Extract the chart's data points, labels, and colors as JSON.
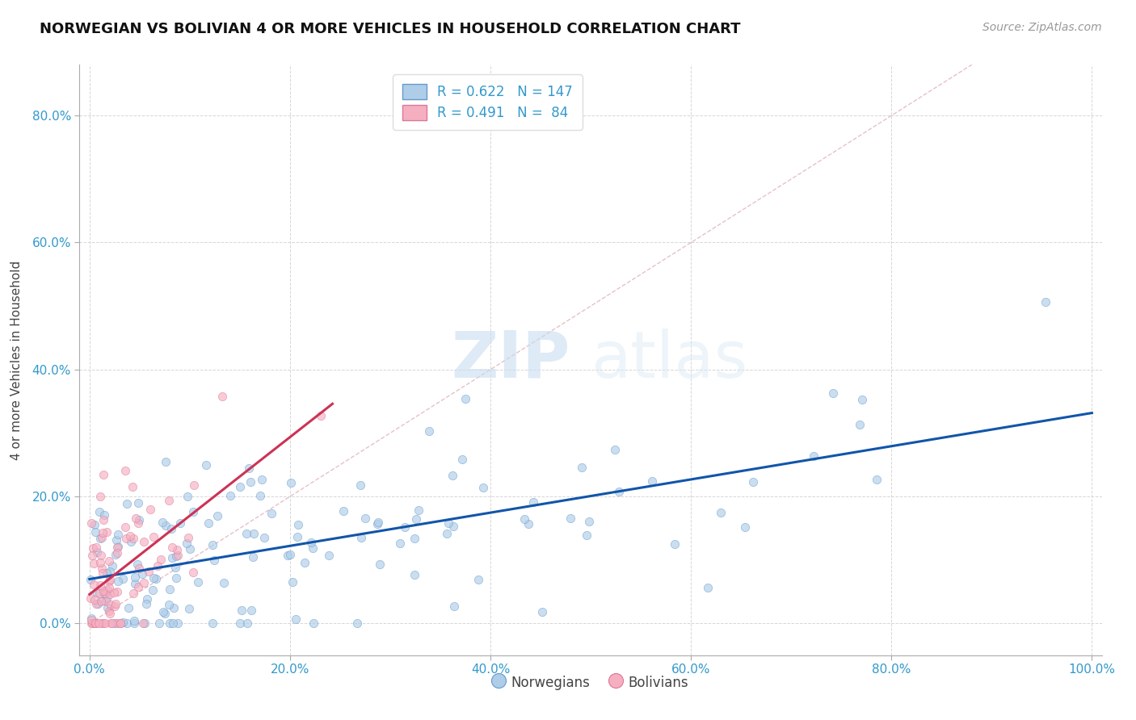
{
  "title": "NORWEGIAN VS BOLIVIAN 4 OR MORE VEHICLES IN HOUSEHOLD CORRELATION CHART",
  "source_text": "Source: ZipAtlas.com",
  "xlabel": "",
  "ylabel": "4 or more Vehicles in Household",
  "xlim": [
    -0.01,
    1.01
  ],
  "ylim": [
    -0.05,
    0.88
  ],
  "xticks": [
    0.0,
    0.2,
    0.4,
    0.6,
    0.8,
    1.0
  ],
  "xtick_labels": [
    "0.0%",
    "20.0%",
    "40.0%",
    "60.0%",
    "80.0%",
    "100.0%"
  ],
  "yticks": [
    0.0,
    0.2,
    0.4,
    0.6,
    0.8
  ],
  "ytick_labels": [
    "0.0%",
    "20.0%",
    "40.0%",
    "60.0%",
    "80.0%"
  ],
  "norwegian_color": "#aecde8",
  "bolivian_color": "#f5afc0",
  "norwegian_edge": "#6699cc",
  "bolivian_edge": "#dd7799",
  "regression_norwegian_color": "#1155aa",
  "regression_bolivian_color": "#cc3355",
  "diagonal_color": "#cccccc",
  "legend_norwegian_label": "R = 0.622   N = 147",
  "legend_bolivian_label": "R = 0.491   N =  84",
  "R_norwegian": 0.622,
  "N_norwegian": 147,
  "R_bolivian": 0.491,
  "N_bolivian": 84,
  "watermark_zip": "ZIP",
  "watermark_atlas": "atlas",
  "title_fontsize": 13,
  "axis_label_fontsize": 11,
  "tick_fontsize": 11,
  "source_fontsize": 10,
  "legend_fontsize": 12,
  "background_color": "#ffffff",
  "grid_color": "#cccccc",
  "scatter_size": 55,
  "scatter_alpha": 0.65,
  "norwegian_seed": 42,
  "bolivian_seed": 77
}
